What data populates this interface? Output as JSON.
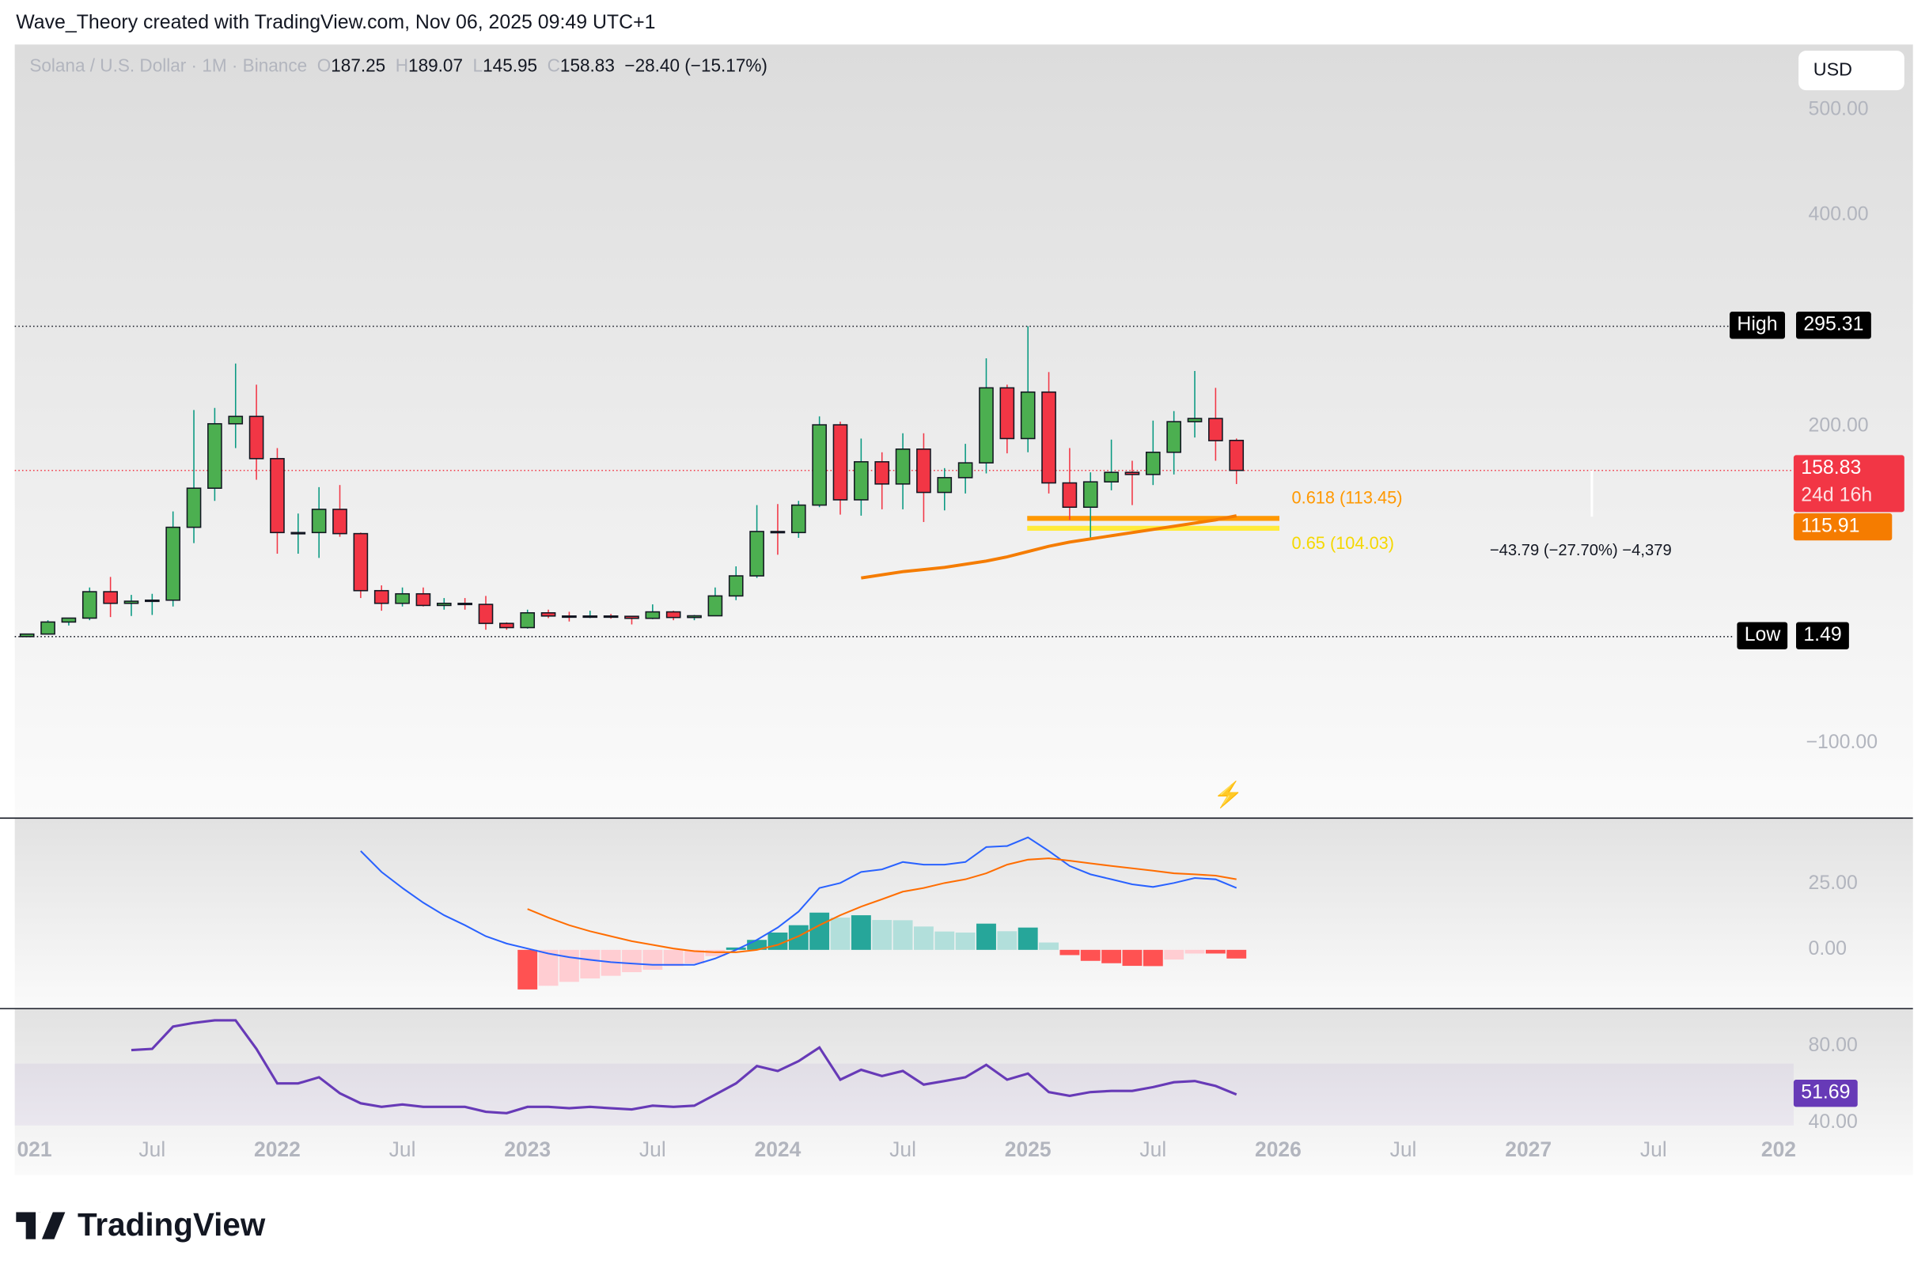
{
  "header": {
    "attribution": "Wave_Theory created with TradingView.com, Nov 06, 2025 09:49 UTC+1"
  },
  "legend": {
    "symbol": "Solana / U.S. Dollar · 1M · Binance",
    "o_label": "O",
    "o": "187.25",
    "h_label": "H",
    "h": "189.07",
    "l_label": "L",
    "l": "145.95",
    "c_label": "C",
    "c": "158.83",
    "change": "−28.40 (−15.17%)"
  },
  "currency_button": "USD",
  "colors": {
    "up": "#4caf50",
    "down": "#f23645",
    "macd": "#2962ff",
    "signal": "#ff6d00",
    "rsi": "#673ab7",
    "fib618": "#ff9800",
    "fib65": "#ffeb3b",
    "ema": "#f57c00"
  },
  "price_axis": {
    "ticks": [
      "500.00",
      "400.00",
      "200.00",
      "−100.00"
    ],
    "tick_values": [
      500,
      400,
      200,
      -100
    ]
  },
  "labels": {
    "high_label": "High",
    "high": "295.31",
    "low_label": "Low",
    "low": "1.49",
    "last_price": "158.83",
    "countdown": "24d 16h",
    "ema_value": "115.91",
    "rsi_value": "51.69"
  },
  "fib": {
    "f618": "0.618 (113.45)",
    "f618_value": 113.45,
    "f65": "0.65 (104.03)",
    "f65_value": 104.03
  },
  "measure": {
    "text": "−43.79 (−27.70%) −4,379"
  },
  "macd_axis": {
    "ticks": [
      "25.00",
      "0.00"
    ]
  },
  "rsi_axis": {
    "ticks": [
      "80.00",
      "40.00"
    ]
  },
  "time_axis": [
    {
      "t": "021",
      "b": 1
    },
    {
      "t": "Jul",
      "b": 0
    },
    {
      "t": "2022",
      "b": 1
    },
    {
      "t": "Jul",
      "b": 0
    },
    {
      "t": "2023",
      "b": 1
    },
    {
      "t": "Jul",
      "b": 0
    },
    {
      "t": "2024",
      "b": 1
    },
    {
      "t": "Jul",
      "b": 0
    },
    {
      "t": "2025",
      "b": 1
    },
    {
      "t": "Jul",
      "b": 0
    },
    {
      "t": "2026",
      "b": 1
    },
    {
      "t": "Jul",
      "b": 0
    },
    {
      "t": "2027",
      "b": 1
    },
    {
      "t": "Jul",
      "b": 0
    },
    {
      "t": "202",
      "b": 1
    }
  ],
  "brand": "TradingView",
  "chart_data": {
    "type": "candlestick",
    "scale": "linear",
    "ylim": [
      -100,
      560
    ],
    "start": "2021-01",
    "interval": "1M",
    "ohlc": [
      [
        1.5,
        4.1,
        1.49,
        3.9
      ],
      [
        3.9,
        17,
        3.5,
        15.3
      ],
      [
        15.3,
        19,
        12,
        19
      ],
      [
        19,
        48,
        17,
        44
      ],
      [
        44,
        58,
        20,
        33
      ],
      [
        33,
        41,
        21,
        35
      ],
      [
        35,
        42,
        22,
        36
      ],
      [
        36,
        120,
        30,
        105
      ],
      [
        105,
        216,
        90,
        142
      ],
      [
        142,
        218,
        130,
        203
      ],
      [
        203,
        260,
        180,
        210
      ],
      [
        210,
        240,
        150,
        170
      ],
      [
        170,
        180,
        80,
        100
      ],
      [
        100,
        118,
        80,
        100
      ],
      [
        100,
        143,
        76,
        122
      ],
      [
        122,
        145,
        96,
        99
      ],
      [
        99,
        100,
        38,
        45
      ],
      [
        45,
        50,
        26,
        33
      ],
      [
        33,
        48,
        30,
        42
      ],
      [
        42,
        48,
        30,
        31
      ],
      [
        31,
        38,
        27,
        33
      ],
      [
        33,
        38,
        27,
        32
      ],
      [
        32,
        40,
        8,
        14
      ],
      [
        14,
        15,
        8,
        10
      ],
      [
        10,
        27,
        9,
        24
      ],
      [
        24,
        27,
        19,
        21
      ],
      [
        21,
        25,
        15.8,
        20.9
      ],
      [
        21,
        26,
        19,
        21
      ],
      [
        21,
        23,
        18.5,
        20.7
      ],
      [
        20.7,
        20.9,
        13,
        18.8
      ],
      [
        18.8,
        32,
        18,
        24.9
      ],
      [
        24.9,
        26,
        17,
        19.6
      ],
      [
        19.6,
        22,
        17,
        21.2
      ],
      [
        21.2,
        48,
        21,
        40
      ],
      [
        40,
        68,
        36,
        59
      ],
      [
        59,
        126,
        57,
        101
      ],
      [
        101,
        127,
        79,
        100
      ],
      [
        100,
        130,
        95,
        126
      ],
      [
        126,
        210,
        124,
        202
      ],
      [
        202,
        205,
        117,
        131
      ],
      [
        131,
        189,
        116,
        167
      ],
      [
        167,
        176,
        122,
        146
      ],
      [
        146,
        194,
        122,
        179
      ],
      [
        179,
        194,
        110,
        138
      ],
      [
        138,
        161,
        121,
        152
      ],
      [
        152,
        184,
        137,
        166
      ],
      [
        166,
        265,
        156,
        237
      ],
      [
        237,
        240,
        175,
        189
      ],
      [
        189,
        295.31,
        176,
        233
      ],
      [
        233,
        252,
        137,
        147
      ],
      [
        147,
        180,
        112,
        124
      ],
      [
        124,
        157,
        95,
        148
      ],
      [
        148,
        188,
        140,
        157
      ],
      [
        157,
        168,
        126,
        155
      ],
      [
        155,
        206,
        145,
        176
      ],
      [
        176,
        215,
        155,
        205
      ],
      [
        205,
        253,
        190,
        208
      ],
      [
        208,
        237,
        168,
        187
      ],
      [
        187.25,
        189.07,
        145.95,
        158.83
      ]
    ],
    "ema": {
      "start": "2024-05",
      "values": [
        57,
        60,
        63,
        65,
        67,
        70,
        73,
        77,
        82,
        87,
        91,
        94,
        97,
        100,
        103,
        106,
        109,
        112,
        115.91
      ]
    },
    "macd": {
      "ylim": [
        -25,
        48
      ],
      "start": "2022-05",
      "macd": [
        37.7,
        29.7,
        23.6,
        18,
        13.2,
        9.4,
        5.2,
        2.4,
        0.5,
        -1.4,
        -2.8,
        -3.8,
        -4.7,
        -5.2,
        -5.7,
        -5.7,
        -5.7,
        -3.3,
        0,
        3.8,
        8.5,
        14.6,
        23.6,
        25.5,
        29.7,
        30.7,
        33.5,
        32.5,
        32.5,
        33.5,
        39.2,
        39.6,
        42.9,
        37.7,
        32,
        28.8,
        26.9,
        25,
        24,
        25.5,
        27.4,
        26.9,
        23.6
      ],
      "signal_start": "2023-01",
      "signal": [
        15.6,
        12.3,
        9.4,
        7.1,
        5.2,
        3.3,
        1.9,
        0.5,
        -0.5,
        -0.9,
        -0.9,
        0,
        1.9,
        5.2,
        9.4,
        13.2,
        16.5,
        19.3,
        22.2,
        23.6,
        25.5,
        26.9,
        29.2,
        32.5,
        34.4,
        34.9,
        34,
        33,
        32,
        31.1,
        30.2,
        29.2,
        28.8,
        28.3,
        26.9
      ]
    },
    "rsi": {
      "ylim": [
        33,
        102
      ],
      "start": "2021-06",
      "values": [
        77.8,
        78.5,
        91.6,
        93.8,
        95.3,
        95.3,
        78.5,
        58.2,
        58.2,
        61.8,
        52.4,
        46.5,
        44.4,
        45.8,
        44.4,
        44.4,
        44.4,
        41.5,
        40.7,
        44.4,
        44.4,
        43.6,
        44.4,
        43.6,
        42.9,
        45.1,
        44.4,
        45.1,
        51.6,
        58.2,
        68.4,
        65.5,
        71.3,
        79.3,
        60.4,
        66.2,
        62.5,
        65.5,
        57.5,
        59.6,
        61.8,
        69.1,
        60.4,
        64,
        53.1,
        50.9,
        53.1,
        53.8,
        53.8,
        56,
        58.9,
        59.6,
        56.7,
        51.69
      ]
    }
  }
}
